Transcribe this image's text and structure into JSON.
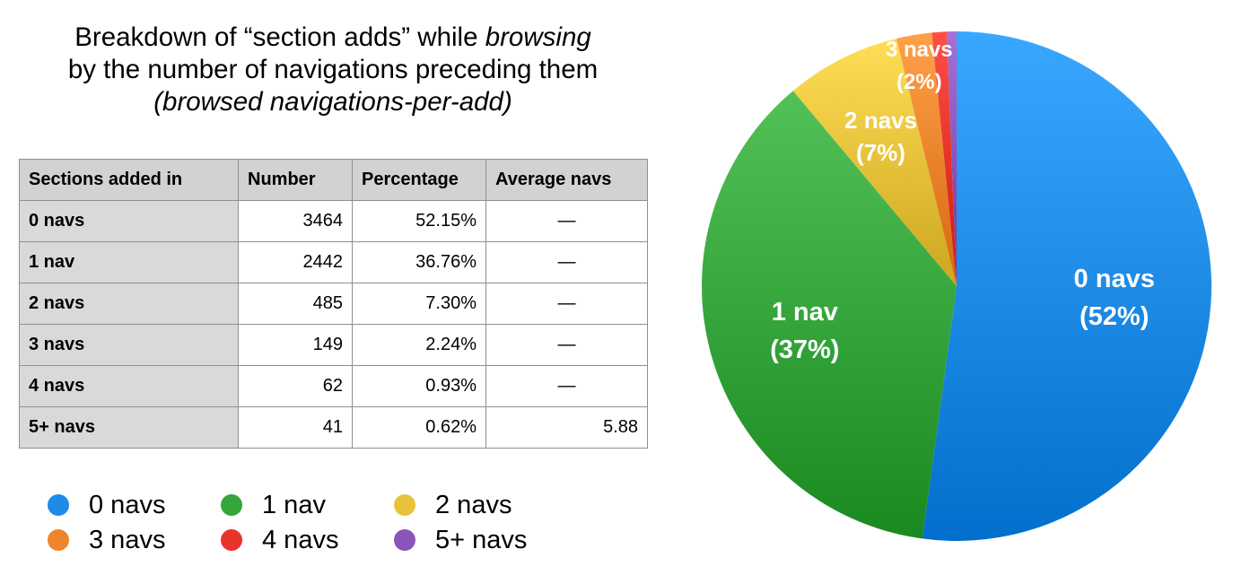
{
  "title": {
    "line1_prefix": "Breakdown of “section adds” while ",
    "line1_italic": "browsing",
    "line2": "by the number of navigations preceding them",
    "line3": "(browsed navigations-per-add)"
  },
  "table": {
    "headers": [
      "Sections added in",
      "Number",
      "Percentage",
      "Average navs"
    ],
    "rows": [
      [
        "0 navs",
        "3464",
        "52.15%",
        "—"
      ],
      [
        "1 nav",
        "2442",
        "36.76%",
        "—"
      ],
      [
        "2 navs",
        "485",
        "7.30%",
        "—"
      ],
      [
        "3 navs",
        "149",
        "2.24%",
        "—"
      ],
      [
        "4 navs",
        "62",
        "0.93%",
        "—"
      ],
      [
        "5+ navs",
        "41",
        "0.62%",
        "5.88"
      ]
    ]
  },
  "legend": {
    "items": [
      {
        "label": "0 navs",
        "color": "#1e8be8"
      },
      {
        "label": "1 nav",
        "color": "#36a53c"
      },
      {
        "label": "2 navs",
        "color": "#e8c23a"
      },
      {
        "label": "3 navs",
        "color": "#f0842c"
      },
      {
        "label": "4 navs",
        "color": "#e8342a"
      },
      {
        "label": "5+ navs",
        "color": "#8a55b8"
      }
    ]
  },
  "chart_data": {
    "type": "pie",
    "slices": [
      {
        "label": "0 navs",
        "value": 52.15,
        "color": "#1e8be8",
        "data_label_line1": "0 navs",
        "data_label_line2": "(52%)"
      },
      {
        "label": "1 nav",
        "value": 36.76,
        "color": "#36a53c",
        "data_label_line1": "1 nav",
        "data_label_line2": "(37%)"
      },
      {
        "label": "2 navs",
        "value": 7.3,
        "color": "#e8c23a",
        "data_label_line1": "2 navs",
        "data_label_line2": "(7%)"
      },
      {
        "label": "3 navs",
        "value": 2.24,
        "color": "#f0842c",
        "data_label_line1": "3 navs",
        "data_label_line2": "(2%)"
      },
      {
        "label": "4 navs",
        "value": 0.93,
        "color": "#e8342a"
      },
      {
        "label": "5+ navs",
        "value": 0.62,
        "color": "#8a55b8"
      }
    ],
    "start": "top",
    "direction": "clockwise"
  }
}
